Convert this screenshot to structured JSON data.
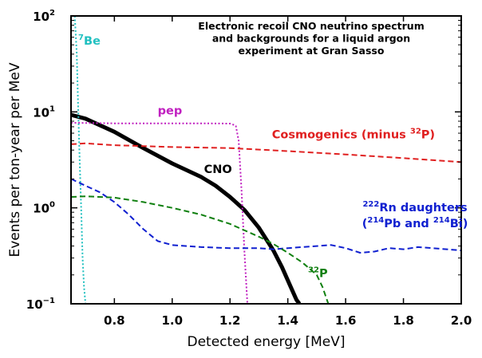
{
  "chart_data": {
    "type": "line",
    "title_lines": [
      "Electronic recoil CNO neutrino spectrum",
      "and backgrounds for a liquid argon",
      "experiment at Gran Sasso"
    ],
    "xlabel": "Detected energy [MeV]",
    "ylabel": "Events per ton-year per MeV",
    "xlim": [
      0.65,
      2.0
    ],
    "ylim_log10": [
      -1,
      2
    ],
    "y_scale": "log",
    "x_ticks": [
      {
        "value": 0.8,
        "label": "0.8"
      },
      {
        "value": 1.0,
        "label": "1.0"
      },
      {
        "value": 1.2,
        "label": "1.2"
      },
      {
        "value": 1.4,
        "label": "1.4"
      },
      {
        "value": 1.6,
        "label": "1.6"
      },
      {
        "value": 1.8,
        "label": "1.8"
      },
      {
        "value": 2.0,
        "label": "2.0"
      }
    ],
    "y_ticks": [
      {
        "exp": 2,
        "base": "10",
        "sup": "2"
      },
      {
        "exp": 1,
        "base": "10",
        "sup": "1"
      },
      {
        "exp": 0,
        "base": "10",
        "sup": "0"
      },
      {
        "exp": -1,
        "base": "10",
        "sup": "−1"
      }
    ],
    "series": [
      {
        "name": "CNO",
        "label_parts": [
          {
            "t": "CNO",
            "sup": false
          }
        ],
        "color": "#000000",
        "style": "solid",
        "points": [
          [
            0.65,
            9.3
          ],
          [
            0.7,
            8.5
          ],
          [
            0.8,
            6.2
          ],
          [
            0.9,
            4.2
          ],
          [
            1.0,
            2.9
          ],
          [
            1.1,
            2.1
          ],
          [
            1.15,
            1.7
          ],
          [
            1.2,
            1.3
          ],
          [
            1.25,
            0.95
          ],
          [
            1.3,
            0.62
          ],
          [
            1.35,
            0.36
          ],
          [
            1.38,
            0.24
          ],
          [
            1.41,
            0.15
          ],
          [
            1.43,
            0.11
          ],
          [
            1.44,
            0.1
          ]
        ]
      },
      {
        "name": "pep",
        "label_parts": [
          {
            "t": "pep",
            "sup": false
          }
        ],
        "color": "#c020c0",
        "style": "dotted",
        "points": [
          [
            0.65,
            7.7
          ],
          [
            0.8,
            7.6
          ],
          [
            1.0,
            7.6
          ],
          [
            1.1,
            7.6
          ],
          [
            1.2,
            7.55
          ],
          [
            1.22,
            7.2
          ],
          [
            1.23,
            5.0
          ],
          [
            1.24,
            1.5
          ],
          [
            1.25,
            0.35
          ],
          [
            1.26,
            0.1
          ]
        ]
      },
      {
        "name": "7Be",
        "label_parts": [
          {
            "t": "7",
            "sup": true
          },
          {
            "t": "Be",
            "sup": false
          }
        ],
        "color": "#20c0c0",
        "style": "dotted",
        "points": [
          [
            0.663,
            100
          ],
          [
            0.67,
            40
          ],
          [
            0.675,
            10
          ],
          [
            0.68,
            3
          ],
          [
            0.685,
            1
          ],
          [
            0.69,
            0.3
          ],
          [
            0.695,
            0.15
          ],
          [
            0.7,
            0.1
          ]
        ]
      },
      {
        "name": "Cosmogenics (minus 32P)",
        "label_parts": [
          {
            "t": "Cosmogenics (minus ",
            "sup": false
          },
          {
            "t": "32",
            "sup": true
          },
          {
            "t": "P)",
            "sup": false
          }
        ],
        "color": "#e02020",
        "style": "dashed",
        "points": [
          [
            0.65,
            4.6
          ],
          [
            0.7,
            4.7
          ],
          [
            0.8,
            4.5
          ],
          [
            0.9,
            4.4
          ],
          [
            1.0,
            4.3
          ],
          [
            1.2,
            4.2
          ],
          [
            1.4,
            3.9
          ],
          [
            1.6,
            3.6
          ],
          [
            1.8,
            3.3
          ],
          [
            2.0,
            3.0
          ]
        ]
      },
      {
        "name": "222Rn daughters (214Pb and 214Bi)",
        "label_parts": [
          {
            "t": "222",
            "sup": true
          },
          {
            "t": "Rn daughters",
            "sup": false
          }
        ],
        "label_parts_line2": [
          {
            "t": "(",
            "sup": false
          },
          {
            "t": "214",
            "sup": true
          },
          {
            "t": "Pb and ",
            "sup": false
          },
          {
            "t": "214",
            "sup": true
          },
          {
            "t": "Bi)",
            "sup": false
          }
        ],
        "color": "#1020d0",
        "style": "dashed",
        "points": [
          [
            0.65,
            2.0
          ],
          [
            0.7,
            1.7
          ],
          [
            0.75,
            1.45
          ],
          [
            0.8,
            1.15
          ],
          [
            0.85,
            0.85
          ],
          [
            0.9,
            0.6
          ],
          [
            0.95,
            0.45
          ],
          [
            1.0,
            0.41
          ],
          [
            1.05,
            0.4
          ],
          [
            1.1,
            0.39
          ],
          [
            1.2,
            0.38
          ],
          [
            1.3,
            0.38
          ],
          [
            1.35,
            0.37
          ],
          [
            1.4,
            0.38
          ],
          [
            1.5,
            0.4
          ],
          [
            1.55,
            0.41
          ],
          [
            1.6,
            0.38
          ],
          [
            1.65,
            0.34
          ],
          [
            1.7,
            0.35
          ],
          [
            1.75,
            0.38
          ],
          [
            1.8,
            0.37
          ],
          [
            1.85,
            0.39
          ],
          [
            1.9,
            0.38
          ],
          [
            2.0,
            0.36
          ]
        ]
      },
      {
        "name": "32P",
        "label_parts": [
          {
            "t": "32",
            "sup": true
          },
          {
            "t": "P",
            "sup": false
          }
        ],
        "color": "#108010",
        "style": "dashed",
        "points": [
          [
            0.65,
            1.3
          ],
          [
            0.7,
            1.32
          ],
          [
            0.8,
            1.28
          ],
          [
            0.9,
            1.15
          ],
          [
            1.0,
            1.0
          ],
          [
            1.1,
            0.85
          ],
          [
            1.2,
            0.68
          ],
          [
            1.3,
            0.5
          ],
          [
            1.35,
            0.42
          ],
          [
            1.4,
            0.34
          ],
          [
            1.45,
            0.27
          ],
          [
            1.5,
            0.2
          ],
          [
            1.52,
            0.15
          ],
          [
            1.54,
            0.1
          ]
        ]
      }
    ]
  }
}
